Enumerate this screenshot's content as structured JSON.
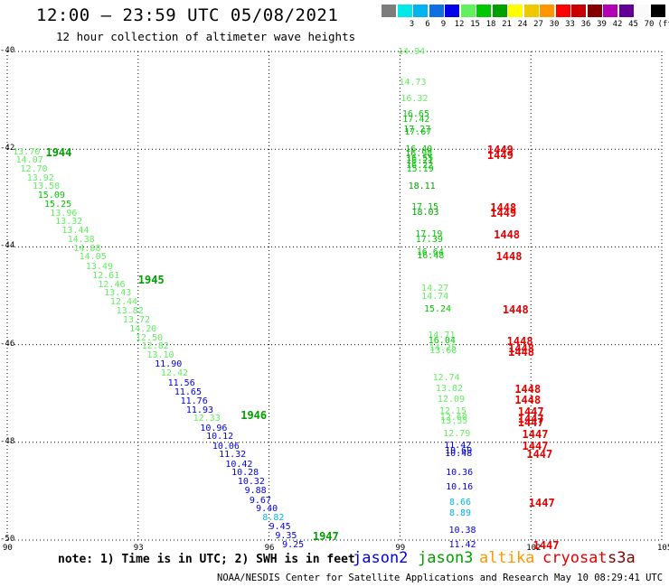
{
  "title": "12:00 – 23:59 UTC 05/08/2021",
  "subtitle": "12 hour collection of altimeter wave heights",
  "colorbar": {
    "swatches": [
      {
        "color": "#7d7d7d",
        "label": ""
      },
      {
        "color": "#00e8e8",
        "label": "3"
      },
      {
        "color": "#00b4f0",
        "label": "6"
      },
      {
        "color": "#1070e0",
        "label": "9"
      },
      {
        "color": "#0000e6",
        "label": "12"
      },
      {
        "color": "#60f060",
        "label": "15"
      },
      {
        "color": "#00c800",
        "label": "18"
      },
      {
        "color": "#00a000",
        "label": "21"
      },
      {
        "color": "#ffff00",
        "label": "24"
      },
      {
        "color": "#f0c800",
        "label": "27"
      },
      {
        "color": "#ff9600",
        "label": "30"
      },
      {
        "color": "#ff0000",
        "label": "33"
      },
      {
        "color": "#c80000",
        "label": "36"
      },
      {
        "color": "#820000",
        "label": "39"
      },
      {
        "color": "#b400b4",
        "label": "42"
      },
      {
        "color": "#640096",
        "label": "45"
      },
      {
        "color": "#fafafa",
        "label": "70"
      },
      {
        "color": "#000000",
        "label": "(ft)"
      }
    ]
  },
  "map_data": {
    "lat_range": [
      -50,
      -40
    ],
    "lon_range": [
      90,
      105
    ],
    "lat_ticks": [
      "-40",
      "-42",
      "-44",
      "-46",
      "-48",
      "-50"
    ],
    "lon_ticks": [
      "90",
      "93",
      "96",
      "99",
      "102",
      "105"
    ],
    "observations": [
      {
        "text": "13.70",
        "lon": 90.13,
        "lat": -42.07,
        "c": "#60f060"
      },
      {
        "text": "14.07",
        "lon": 90.2,
        "lat": -42.23,
        "c": "#60f060"
      },
      {
        "text": "12.70",
        "lon": 90.3,
        "lat": -42.42,
        "c": "#60f060"
      },
      {
        "text": "13.92",
        "lon": 90.45,
        "lat": -42.6,
        "c": "#60f060"
      },
      {
        "text": "13.58",
        "lon": 90.58,
        "lat": -42.78,
        "c": "#60f060"
      },
      {
        "text": "15.09",
        "lon": 90.7,
        "lat": -42.96,
        "c": "#00c800"
      },
      {
        "text": "15.25",
        "lon": 90.85,
        "lat": -43.15,
        "c": "#00c800"
      },
      {
        "text": "13.96",
        "lon": 90.98,
        "lat": -43.32,
        "c": "#60f060"
      },
      {
        "text": "13.32",
        "lon": 91.1,
        "lat": -43.5,
        "c": "#60f060"
      },
      {
        "text": "13.44",
        "lon": 91.25,
        "lat": -43.68,
        "c": "#60f060"
      },
      {
        "text": "14.38",
        "lon": 91.38,
        "lat": -43.86,
        "c": "#60f060"
      },
      {
        "text": "14.88",
        "lon": 91.52,
        "lat": -44.04,
        "c": "#60f060"
      },
      {
        "text": "14.05",
        "lon": 91.65,
        "lat": -44.22,
        "c": "#60f060"
      },
      {
        "text": "13.49",
        "lon": 91.8,
        "lat": -44.41,
        "c": "#60f060"
      },
      {
        "text": "12.61",
        "lon": 91.95,
        "lat": -44.6,
        "c": "#60f060"
      },
      {
        "text": "12.46",
        "lon": 92.08,
        "lat": -44.78,
        "c": "#60f060"
      },
      {
        "text": "13.43",
        "lon": 92.22,
        "lat": -44.96,
        "c": "#60f060"
      },
      {
        "text": "12.44",
        "lon": 92.36,
        "lat": -45.14,
        "c": "#60f060"
      },
      {
        "text": "13.82",
        "lon": 92.5,
        "lat": -45.33,
        "c": "#60f060"
      },
      {
        "text": "13.72",
        "lon": 92.65,
        "lat": -45.51,
        "c": "#60f060"
      },
      {
        "text": "14.20",
        "lon": 92.8,
        "lat": -45.69,
        "c": "#60f060"
      },
      {
        "text": "12.50",
        "lon": 92.94,
        "lat": -45.87,
        "c": "#60f060"
      },
      {
        "text": "12.82",
        "lon": 93.08,
        "lat": -46.05,
        "c": "#60f060"
      },
      {
        "text": "13.10",
        "lon": 93.2,
        "lat": -46.23,
        "c": "#60f060"
      },
      {
        "text": "11.90",
        "lon": 93.38,
        "lat": -46.42,
        "c": "#0000e6"
      },
      {
        "text": "12.42",
        "lon": 93.52,
        "lat": -46.6,
        "c": "#60f060"
      },
      {
        "text": "11.56",
        "lon": 93.68,
        "lat": -46.8,
        "c": "#0000e6"
      },
      {
        "text": "11.65",
        "lon": 93.83,
        "lat": -46.98,
        "c": "#0000e6"
      },
      {
        "text": "11.76",
        "lon": 93.97,
        "lat": -47.17,
        "c": "#0000e6"
      },
      {
        "text": "11.93",
        "lon": 94.1,
        "lat": -47.35,
        "c": "#0000e6"
      },
      {
        "text": "12.33",
        "lon": 94.26,
        "lat": -47.52,
        "c": "#60f060"
      },
      {
        "text": "10.96",
        "lon": 94.42,
        "lat": -47.72,
        "c": "#0000e6"
      },
      {
        "text": "10.12",
        "lon": 94.56,
        "lat": -47.9,
        "c": "#0000e6"
      },
      {
        "text": "10.06",
        "lon": 94.7,
        "lat": -48.09,
        "c": "#0000e6"
      },
      {
        "text": "11.32",
        "lon": 94.85,
        "lat": -48.27,
        "c": "#0000e6"
      },
      {
        "text": "10.42",
        "lon": 95.0,
        "lat": -48.46,
        "c": "#0000e6"
      },
      {
        "text": "10.28",
        "lon": 95.14,
        "lat": -48.64,
        "c": "#0000e6"
      },
      {
        "text": "10.32",
        "lon": 95.28,
        "lat": -48.82,
        "c": "#0000e6"
      },
      {
        "text": "9.88",
        "lon": 95.44,
        "lat": -49.01,
        "c": "#0000e6"
      },
      {
        "text": "9.67",
        "lon": 95.55,
        "lat": -49.2,
        "c": "#0000e6"
      },
      {
        "text": "9.40",
        "lon": 95.7,
        "lat": -49.38,
        "c": "#0000e6"
      },
      {
        "text": "8.82",
        "lon": 95.85,
        "lat": -49.56,
        "c": "#00b4f0"
      },
      {
        "text": "9.45",
        "lon": 96.0,
        "lat": -49.75,
        "c": "#0000e6"
      },
      {
        "text": "9.35",
        "lon": 96.14,
        "lat": -49.93,
        "c": "#0000e6"
      },
      {
        "text": "9.25",
        "lon": 96.3,
        "lat": -50.11,
        "c": "#0000e6"
      },
      {
        "text": "14.94",
        "lon": 98.95,
        "lat": -40.02,
        "c": "#60f060"
      },
      {
        "text": "14.73",
        "lon": 98.98,
        "lat": -40.64,
        "c": "#60f060"
      },
      {
        "text": "16.32",
        "lon": 99.02,
        "lat": -40.98,
        "c": "#60f060"
      },
      {
        "text": "16.65",
        "lon": 99.05,
        "lat": -41.3,
        "c": "#00c800"
      },
      {
        "text": "17.42",
        "lon": 99.06,
        "lat": -41.4,
        "c": "#00c800"
      },
      {
        "text": "17.27",
        "lon": 99.08,
        "lat": -41.6,
        "c": "#00c800"
      },
      {
        "text": "17.67",
        "lon": 99.1,
        "lat": -41.67,
        "c": "#00c800"
      },
      {
        "text": "16.40",
        "lon": 99.12,
        "lat": -42.02,
        "c": "#00c800"
      },
      {
        "text": "16.98",
        "lon": 99.12,
        "lat": -42.1,
        "c": "#00c800"
      },
      {
        "text": "16.55",
        "lon": 99.14,
        "lat": -42.2,
        "c": "#00c800"
      },
      {
        "text": "16.21",
        "lon": 99.14,
        "lat": -42.26,
        "c": "#00c800"
      },
      {
        "text": "16.22",
        "lon": 99.14,
        "lat": -42.34,
        "c": "#00c800"
      },
      {
        "text": "15.19",
        "lon": 99.15,
        "lat": -42.42,
        "c": "#00c800"
      },
      {
        "text": "18.11",
        "lon": 99.19,
        "lat": -42.78,
        "c": "#00a000"
      },
      {
        "text": "17.15",
        "lon": 99.26,
        "lat": -43.2,
        "c": "#00c800"
      },
      {
        "text": "18.03",
        "lon": 99.27,
        "lat": -43.31,
        "c": "#00a000"
      },
      {
        "text": "17.19",
        "lon": 99.35,
        "lat": -43.75,
        "c": "#00c800"
      },
      {
        "text": "17.39",
        "lon": 99.36,
        "lat": -43.86,
        "c": "#00c800"
      },
      {
        "text": "16.64",
        "lon": 99.38,
        "lat": -44.12,
        "c": "#00c800"
      },
      {
        "text": "16.48",
        "lon": 99.39,
        "lat": -44.2,
        "c": "#00c800"
      },
      {
        "text": "14.27",
        "lon": 99.49,
        "lat": -44.86,
        "c": "#60f060"
      },
      {
        "text": "14.74",
        "lon": 99.49,
        "lat": -45.02,
        "c": "#60f060"
      },
      {
        "text": "15.24",
        "lon": 99.55,
        "lat": -45.28,
        "c": "#00c800"
      },
      {
        "text": "14.71",
        "lon": 99.64,
        "lat": -45.82,
        "c": "#60f060"
      },
      {
        "text": "16.04",
        "lon": 99.65,
        "lat": -45.94,
        "c": "#00c800"
      },
      {
        "text": "14.25",
        "lon": 99.67,
        "lat": -46.08,
        "c": "#60f060"
      },
      {
        "text": "13.68",
        "lon": 99.68,
        "lat": -46.14,
        "c": "#60f060"
      },
      {
        "text": "12.74",
        "lon": 99.75,
        "lat": -46.7,
        "c": "#60f060"
      },
      {
        "text": "13.82",
        "lon": 99.82,
        "lat": -46.91,
        "c": "#60f060"
      },
      {
        "text": "12.09",
        "lon": 99.86,
        "lat": -47.14,
        "c": "#60f060"
      },
      {
        "text": "12.15",
        "lon": 99.9,
        "lat": -47.38,
        "c": "#60f060"
      },
      {
        "text": "12.60",
        "lon": 99.92,
        "lat": -47.5,
        "c": "#60f060"
      },
      {
        "text": "13.55",
        "lon": 99.93,
        "lat": -47.58,
        "c": "#60f060"
      },
      {
        "text": "12.79",
        "lon": 99.99,
        "lat": -47.83,
        "c": "#60f060"
      },
      {
        "text": "11.42",
        "lon": 100.01,
        "lat": -48.08,
        "c": "#0000e6"
      },
      {
        "text": "10.69",
        "lon": 100.03,
        "lat": -48.18,
        "c": "#0000e6"
      },
      {
        "text": "10.48",
        "lon": 100.03,
        "lat": -48.25,
        "c": "#0000e6"
      },
      {
        "text": "10.36",
        "lon": 100.05,
        "lat": -48.63,
        "c": "#0000e6"
      },
      {
        "text": "10.16",
        "lon": 100.05,
        "lat": -48.92,
        "c": "#0000e6"
      },
      {
        "text": "8.66",
        "lon": 100.13,
        "lat": -49.25,
        "c": "#00b4f0"
      },
      {
        "text": "8.89",
        "lon": 100.13,
        "lat": -49.47,
        "c": "#00b4f0"
      },
      {
        "text": "10.38",
        "lon": 100.12,
        "lat": -49.82,
        "c": "#0000e6"
      },
      {
        "text": "11.42",
        "lon": 100.12,
        "lat": -50.11,
        "c": "#0000e6"
      }
    ],
    "time_labels": [
      {
        "text": "1944",
        "lon": 90.88,
        "lat": -42.07,
        "c": "#00a000"
      },
      {
        "text": "1945",
        "lon": 93.0,
        "lat": -44.68,
        "c": "#00a000"
      },
      {
        "text": "1946",
        "lon": 95.35,
        "lat": -47.45,
        "c": "#00a000"
      },
      {
        "text": "1947",
        "lon": 97.0,
        "lat": -49.92,
        "c": "#00a000"
      },
      {
        "text": "1449",
        "lon": 101.0,
        "lat": -42.02,
        "c": "#e60000"
      },
      {
        "text": "1449",
        "lon": 101.0,
        "lat": -42.12,
        "c": "#e60000"
      },
      {
        "text": "1448",
        "lon": 101.07,
        "lat": -43.2,
        "c": "#e60000"
      },
      {
        "text": "1449",
        "lon": 101.07,
        "lat": -43.3,
        "c": "#e60000"
      },
      {
        "text": "1448",
        "lon": 101.15,
        "lat": -43.75,
        "c": "#e60000"
      },
      {
        "text": "1448",
        "lon": 101.2,
        "lat": -44.2,
        "c": "#e60000"
      },
      {
        "text": "1448",
        "lon": 101.35,
        "lat": -45.28,
        "c": "#e60000"
      },
      {
        "text": "1448",
        "lon": 101.45,
        "lat": -45.94,
        "c": "#e60000"
      },
      {
        "text": "1448",
        "lon": 101.48,
        "lat": -46.08,
        "c": "#e60000"
      },
      {
        "text": "1448",
        "lon": 101.48,
        "lat": -46.16,
        "c": "#e60000"
      },
      {
        "text": "1448",
        "lon": 101.63,
        "lat": -46.91,
        "c": "#e60000"
      },
      {
        "text": "1448",
        "lon": 101.63,
        "lat": -47.14,
        "c": "#e60000"
      },
      {
        "text": "1447",
        "lon": 101.7,
        "lat": -47.38,
        "c": "#e60000"
      },
      {
        "text": "1447",
        "lon": 101.7,
        "lat": -47.52,
        "c": "#e60000"
      },
      {
        "text": "1447",
        "lon": 101.7,
        "lat": -47.6,
        "c": "#e60000"
      },
      {
        "text": "1447",
        "lon": 101.8,
        "lat": -47.83,
        "c": "#e60000"
      },
      {
        "text": "1447",
        "lon": 101.8,
        "lat": -48.08,
        "c": "#e60000"
      },
      {
        "text": "1447",
        "lon": 101.9,
        "lat": -48.25,
        "c": "#e60000"
      },
      {
        "text": "1447",
        "lon": 101.95,
        "lat": -49.25,
        "c": "#e60000"
      },
      {
        "text": "1447",
        "lon": 102.05,
        "lat": -50.11,
        "c": "#e60000"
      }
    ]
  },
  "note": "note: 1) Time is in UTC; 2) SWH is in feet",
  "legend": [
    {
      "name": "jason2",
      "color": "#0000e6"
    },
    {
      "name": "jason3",
      "color": "#00a000"
    },
    {
      "name": "altika",
      "color": "#ff9600"
    },
    {
      "name": "cryosat",
      "color": "#e60000"
    },
    {
      "name": "s3a",
      "color": "#820000"
    }
  ],
  "footer": "NOAA/NESDIS Center for Satellite Applications and Research    May 10 08:29:41 UTC 2021"
}
